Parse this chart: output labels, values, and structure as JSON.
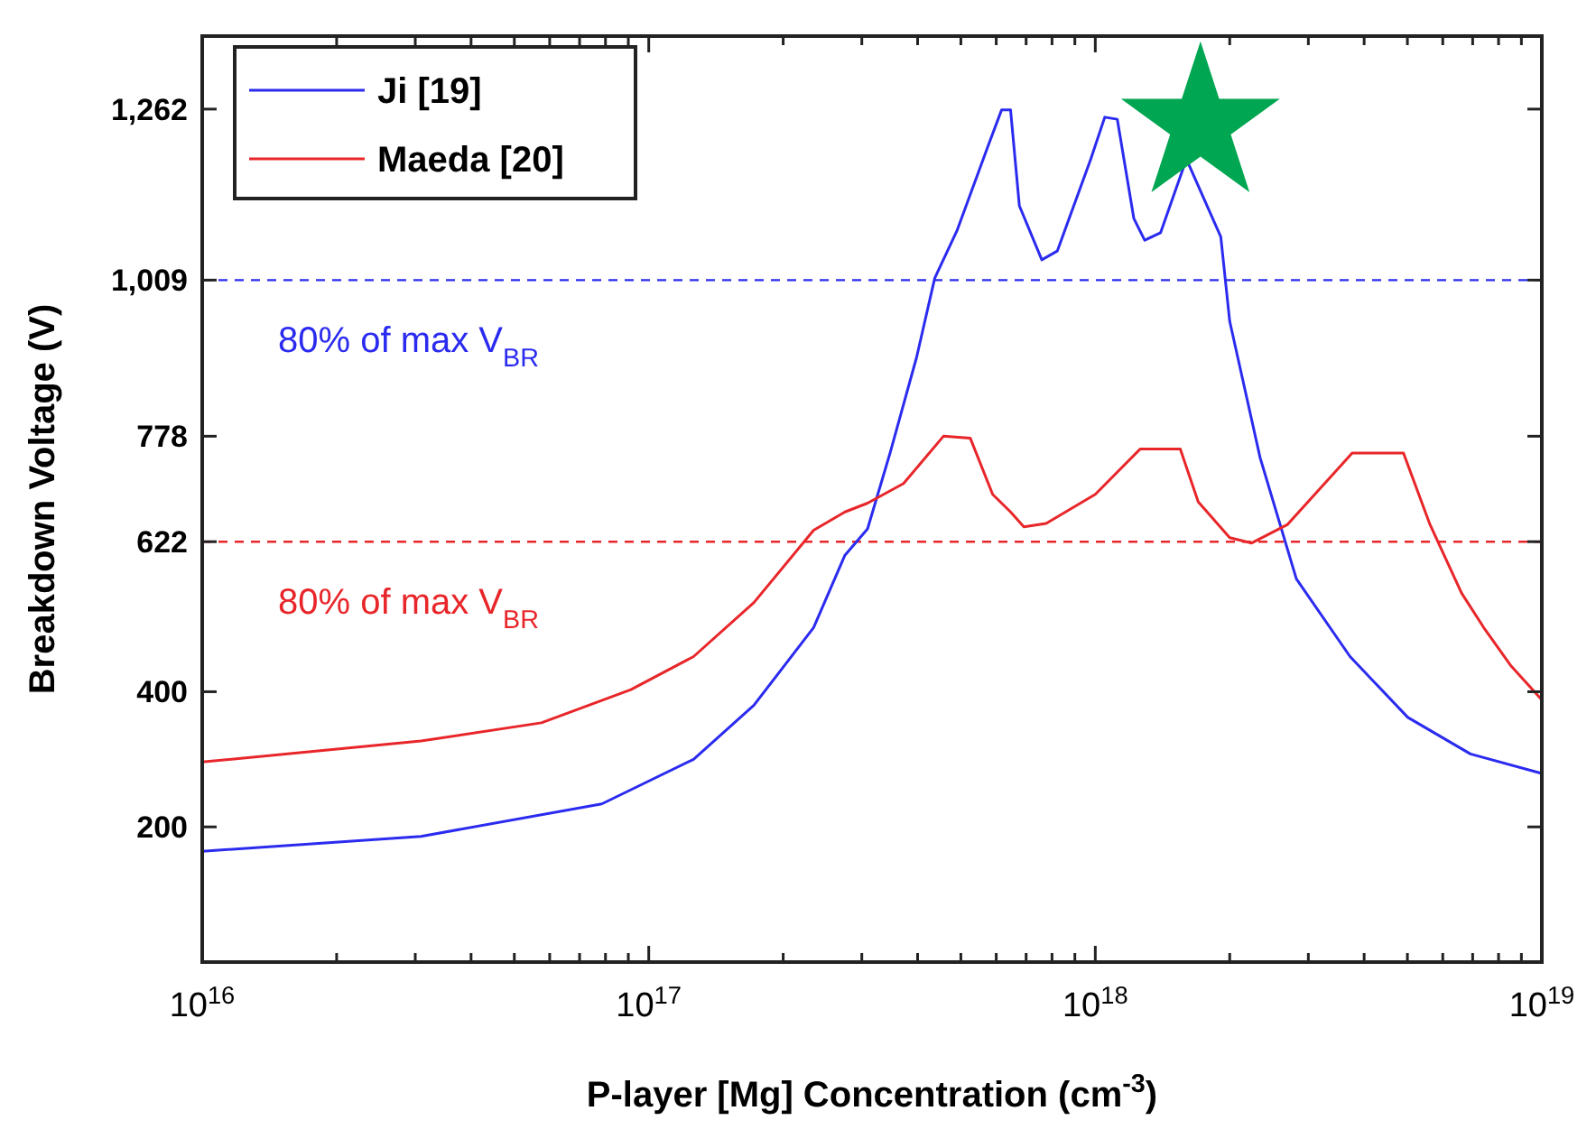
{
  "chart_data": {
    "type": "line",
    "xlabel": "P-layer [Mg] Concentration (cm$^{-3}$)",
    "ylabel": "Breakdown Voltage (V)",
    "log": "x",
    "xlim": [
      1e+16,
      1e+19
    ],
    "ylim": [
      0,
      1370
    ],
    "xticks": [
      {
        "value": 1e+16,
        "label": "10$^{16}$"
      },
      {
        "value": 2e+16,
        "label": null
      },
      {
        "value": 3e+16,
        "label": null
      },
      {
        "value": 4e+16,
        "label": null
      },
      {
        "value": 5e+16,
        "label": null
      },
      {
        "value": 6e+16,
        "label": null
      },
      {
        "value": 7e+16,
        "label": null
      },
      {
        "value": 8e+16,
        "label": null
      },
      {
        "value": 9e+16,
        "label": null
      },
      {
        "value": 1e+17,
        "label": "10$^{17}$"
      },
      {
        "value": 2e+17,
        "label": null
      },
      {
        "value": 3e+17,
        "label": null
      },
      {
        "value": 4e+17,
        "label": null
      },
      {
        "value": 5e+17,
        "label": null
      },
      {
        "value": 6e+17,
        "label": null
      },
      {
        "value": 7e+17,
        "label": null
      },
      {
        "value": 8e+17,
        "label": null
      },
      {
        "value": 9e+17,
        "label": null
      },
      {
        "value": 1e+18,
        "label": "10$^{18}$"
      },
      {
        "value": 2e+18,
        "label": null
      },
      {
        "value": 3e+18,
        "label": null
      },
      {
        "value": 4e+18,
        "label": null
      },
      {
        "value": 5e+18,
        "label": null
      },
      {
        "value": 6e+18,
        "label": null
      },
      {
        "value": 7e+18,
        "label": null
      },
      {
        "value": 8e+18,
        "label": null
      },
      {
        "value": 9e+18,
        "label": null
      },
      {
        "value": 1e+19,
        "label": "10$^{19}$"
      }
    ],
    "yticks": [
      200,
      400,
      622,
      778,
      {
        "value": 1009,
        "label": "1,009"
      },
      {
        "value": 1262,
        "label": "1,262"
      }
    ],
    "legend": "top left",
    "line_style": "solid",
    "series": [
      {
        "name": "Ji [19]",
        "color": "#2b2bf0",
        "x": [
          1e+16,
          3.09e+16,
          7.85e+16,
          1.26e+17,
          1.72e+17,
          2.34e+17,
          2.75e+17,
          3.09e+17,
          3.47e+17,
          3.98e+17,
          4.37e+17,
          4.9e+17,
          5.75e+17,
          6.17e+17,
          6.46e+17,
          6.76e+17,
          7.59e+17,
          8.22e+17,
          9.77e+17,
          1.05e+18,
          1.12e+18,
          1.22e+18,
          1.29e+18,
          1.4e+18,
          1.6e+18,
          1.91e+18,
          2e+18,
          2.34e+18,
          2.82e+18,
          3.72e+18,
          5.01e+18,
          6.92e+18,
          1e+19
        ],
        "values": [
          164,
          186,
          234,
          300,
          380,
          495,
          602,
          641,
          753,
          895,
          1012,
          1082,
          1207,
          1261,
          1261,
          1119,
          1039,
          1052,
          1188,
          1250,
          1247,
          1100,
          1068,
          1079,
          1188,
          1073,
          948,
          746,
          567,
          452,
          362,
          308,
          279
        ]
      },
      {
        "name": "Maeda [20]",
        "color": "#e8262a",
        "x": [
          1e+16,
          3.09e+16,
          5.75e+16,
          9.12e+16,
          1.26e+17,
          1.72e+17,
          2.34e+17,
          2.75e+17,
          3.09e+17,
          3.72e+17,
          4.57e+17,
          5.25e+17,
          5.89e+17,
          6.46e+17,
          6.92e+17,
          7.76e+17,
          1e+18,
          1.26e+18,
          1.55e+18,
          1.7e+18,
          2e+18,
          2.24e+18,
          2.69e+18,
          3.76e+18,
          4.9e+18,
          5.62e+18,
          6.61e+18,
          7.41e+18,
          8.51e+18,
          1e+19
        ],
        "values": [
          296,
          327,
          354,
          403,
          452,
          532,
          639,
          666,
          679,
          708,
          778,
          775,
          692,
          666,
          644,
          649,
          692,
          759,
          759,
          681,
          628,
          620,
          647,
          753,
          753,
          647,
          546,
          495,
          439,
          388
        ]
      },
      {
        "type": "scatter",
        "marker": "star",
        "color": "#00a651",
        "x": [
          1.72e+18
        ],
        "values": [
          1239
        ]
      }
    ],
    "ref_lines": [
      {
        "axis": "y",
        "value": 1009,
        "label": "80% of max V$_{BR}$",
        "color": "#2b2bf0",
        "line_style": "dashed"
      },
      {
        "axis": "y",
        "value": 622,
        "label": "80% of max V$_{BR}$",
        "color": "#e8262a",
        "line_style": "dashed"
      }
    ]
  }
}
